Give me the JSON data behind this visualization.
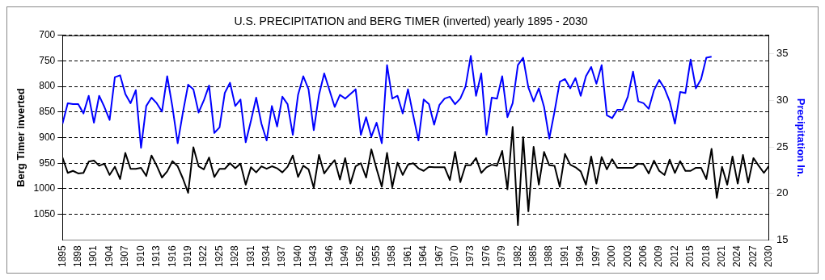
{
  "chart_data": {
    "type": "line",
    "title": "U.S. PRECIPITATION and BERG TIMER (inverted) yearly 1895 - 2030",
    "ylabel": "Berg Timer inverted",
    "y2label": "Precipitation In.",
    "x": [
      1895,
      1896,
      1897,
      1898,
      1899,
      1900,
      1901,
      1902,
      1903,
      1904,
      1905,
      1906,
      1907,
      1908,
      1909,
      1910,
      1911,
      1912,
      1913,
      1914,
      1915,
      1916,
      1917,
      1918,
      1919,
      1920,
      1921,
      1922,
      1923,
      1924,
      1925,
      1926,
      1927,
      1928,
      1929,
      1930,
      1931,
      1932,
      1933,
      1934,
      1935,
      1936,
      1937,
      1938,
      1939,
      1940,
      1941,
      1942,
      1943,
      1944,
      1945,
      1946,
      1947,
      1948,
      1949,
      1950,
      1951,
      1952,
      1953,
      1954,
      1955,
      1956,
      1957,
      1958,
      1959,
      1960,
      1961,
      1962,
      1963,
      1964,
      1965,
      1966,
      1967,
      1968,
      1969,
      1970,
      1971,
      1972,
      1973,
      1974,
      1975,
      1976,
      1977,
      1978,
      1979,
      1980,
      1981,
      1982,
      1983,
      1984,
      1985,
      1986,
      1987,
      1988,
      1989,
      1990,
      1991,
      1992,
      1993,
      1994,
      1995,
      1996,
      1997,
      1998,
      1999,
      2000,
      2001,
      2002,
      2003,
      2004,
      2005,
      2006,
      2007,
      2008,
      2009,
      2010,
      2011,
      2012,
      2013,
      2014,
      2015,
      2016,
      2017,
      2018,
      2019,
      2020,
      2021,
      2022,
      2023,
      2024,
      2025,
      2026,
      2027,
      2028,
      2029,
      2030
    ],
    "series": [
      {
        "color": "#0000ff",
        "axis": "y2",
        "values": [
          27.5,
          29.7,
          29.6,
          29.6,
          28.6,
          30.5,
          27.6,
          30.5,
          29.3,
          27.9,
          32.5,
          32.7,
          30.7,
          29.7,
          31.1,
          24.9,
          29.4,
          30.3,
          29.7,
          28.8,
          32.6,
          29.3,
          25.4,
          28.7,
          31.7,
          31.2,
          28.7,
          30.0,
          31.6,
          26.5,
          27.1,
          30.8,
          31.9,
          29.4,
          30.1,
          25.5,
          27.8,
          30.3,
          27.5,
          25.7,
          29.4,
          27.2,
          30.4,
          29.6,
          26.3,
          30.6,
          32.6,
          31.2,
          26.8,
          30.6,
          32.9,
          31.1,
          29.3,
          30.6,
          30.2,
          30.7,
          31.2,
          26.3,
          28.2,
          26.1,
          27.6,
          25.4,
          33.8,
          30.2,
          30.5,
          28.6,
          31.2,
          28.4,
          25.7,
          30.1,
          29.6,
          27.4,
          29.5,
          30.2,
          30.4,
          29.6,
          30.2,
          31.5,
          34.8,
          30.5,
          32.9,
          26.3,
          30.3,
          30.2,
          32.6,
          28.2,
          29.7,
          33.8,
          34.6,
          31.4,
          29.9,
          31.3,
          29.3,
          25.9,
          28.8,
          32.0,
          32.3,
          31.3,
          32.4,
          30.5,
          32.6,
          33.6,
          31.8,
          33.8,
          28.4,
          28.1,
          29.0,
          29.0,
          30.4,
          33.1,
          29.9,
          29.7,
          29.1,
          31.1,
          32.2,
          31.3,
          29.9,
          27.5,
          30.9,
          30.8,
          34.4,
          31.3,
          32.3,
          34.6,
          34.7,
          null,
          null,
          null,
          null,
          null,
          null,
          null,
          null,
          null,
          null,
          null
        ]
      },
      {
        "color": "#000000",
        "axis": "y",
        "values": [
          939,
          969,
          965,
          970,
          969,
          947,
          945,
          955,
          951,
          973,
          957,
          981,
          930,
          961,
          961,
          959,
          975,
          935,
          955,
          978,
          966,
          946,
          956,
          980,
          1008,
          919,
          956,
          962,
          939,
          977,
          961,
          961,
          950,
          960,
          951,
          992,
          958,
          968,
          956,
          961,
          956,
          960,
          968,
          957,
          935,
          977,
          955,
          962,
          998,
          934,
          970,
          956,
          944,
          982,
          940,
          990,
          956,
          950,
          978,
          923,
          961,
          996,
          930,
          997,
          949,
          973,
          953,
          950,
          960,
          965,
          957,
          958,
          958,
          958,
          983,
          928,
          987,
          954,
          954,
          940,
          969,
          958,
          953,
          955,
          926,
          1001,
          879,
          1071,
          899,
          1044,
          918,
          992,
          928,
          954,
          955,
          996,
          932,
          953,
          958,
          966,
          992,
          937,
          990,
          938,
          962,
          942,
          959,
          959,
          959,
          959,
          951,
          952,
          970,
          945,
          965,
          973,
          943,
          969,
          946,
          965,
          965,
          959,
          959,
          981,
          922,
          1018,
          957,
          992,
          937,
          990,
          934,
          988,
          940,
          955,
          969,
          955
        ]
      }
    ],
    "xlim": [
      1895,
      2030
    ],
    "xticks": [
      1895,
      1898,
      1901,
      1904,
      1907,
      1910,
      1913,
      1916,
      1919,
      1922,
      1925,
      1928,
      1931,
      1934,
      1937,
      1940,
      1943,
      1946,
      1949,
      1952,
      1955,
      1958,
      1961,
      1964,
      1967,
      1970,
      1973,
      1976,
      1979,
      1982,
      1985,
      1988,
      1991,
      1994,
      1997,
      2000,
      2003,
      2006,
      2009,
      2012,
      2015,
      2018,
      2021,
      2024,
      2027,
      2030
    ],
    "ylim": [
      1100,
      700
    ],
    "yticks": [
      700,
      750,
      800,
      850,
      900,
      950,
      1000,
      1050
    ],
    "y2lim": [
      15,
      37
    ],
    "y2ticks": [
      15,
      20,
      25,
      30,
      35
    ],
    "grid": "y",
    "marker": "none",
    "line_style": "solid"
  }
}
